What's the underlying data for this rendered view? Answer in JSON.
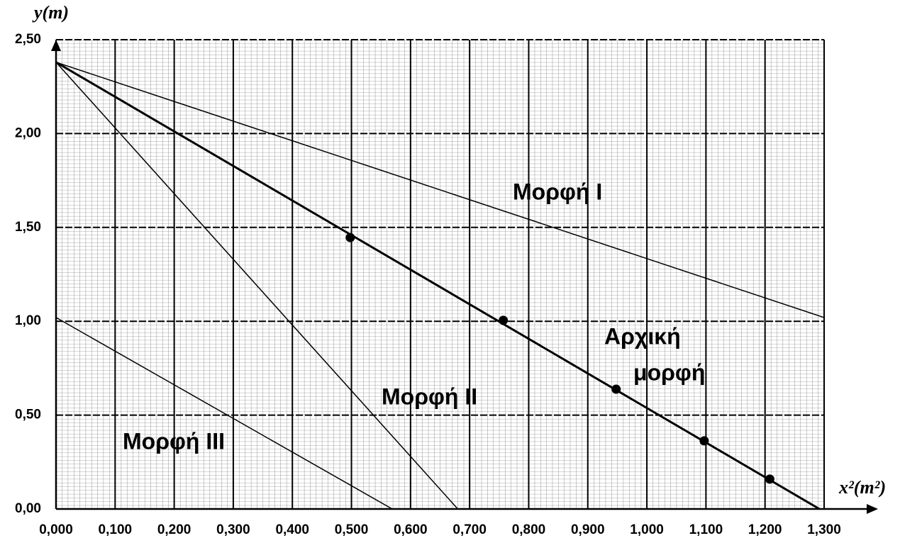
{
  "chart_data": {
    "type": "line",
    "x_label": "x²(m²)",
    "y_label": "y(m)",
    "xlim": [
      0,
      1.3
    ],
    "ylim": [
      0,
      2.5
    ],
    "xticks": [
      {
        "value": 0,
        "label": "0,000"
      },
      {
        "value": 0.1,
        "label": "0,100"
      },
      {
        "value": 0.2,
        "label": "0,200"
      },
      {
        "value": 0.3,
        "label": "0,300"
      },
      {
        "value": 0.4,
        "label": "0,400"
      },
      {
        "value": 0.5,
        "label": "0,500"
      },
      {
        "value": 0.6,
        "label": "0,600"
      },
      {
        "value": 0.7,
        "label": "0,700"
      },
      {
        "value": 0.8,
        "label": "0,800"
      },
      {
        "value": 0.9,
        "label": "0,900"
      },
      {
        "value": 1.0,
        "label": "1,000"
      },
      {
        "value": 1.1,
        "label": "1,100"
      },
      {
        "value": 1.2,
        "label": "1,200"
      },
      {
        "value": 1.3,
        "label": "1,300"
      }
    ],
    "yticks": [
      {
        "value": 0,
        "label": "0,00"
      },
      {
        "value": 0.5,
        "label": "0,50"
      },
      {
        "value": 1.0,
        "label": "1,00"
      },
      {
        "value": 1.5,
        "label": "1,50"
      },
      {
        "value": 2.0,
        "label": "2,00"
      },
      {
        "value": 2.5,
        "label": "2,50"
      }
    ],
    "grid": true,
    "series": [
      {
        "color": "#000000",
        "x": [
          0,
          1.292
        ],
        "values": [
          2.38,
          0
        ],
        "width": 3
      },
      {
        "color": "#000000",
        "x": [
          0,
          1.3
        ],
        "values": [
          2.38,
          1.02
        ],
        "width": 1.5
      },
      {
        "color": "#000000",
        "x": [
          0,
          0.68
        ],
        "values": [
          2.38,
          0
        ],
        "width": 1.5
      },
      {
        "color": "#000000",
        "x": [
          0,
          0.569
        ],
        "values": [
          1.02,
          0
        ],
        "width": 1.5
      }
    ],
    "points": {
      "color": "#000000",
      "x": [
        0.498,
        0.757,
        0.948,
        1.097,
        1.208
      ],
      "values": [
        1.446,
        1.005,
        0.638,
        0.363,
        0.159
      ]
    },
    "annotations": [
      "Μορφή I",
      "Μορφή II",
      "Μορφή III",
      "Αρχική",
      "μορφή"
    ]
  }
}
